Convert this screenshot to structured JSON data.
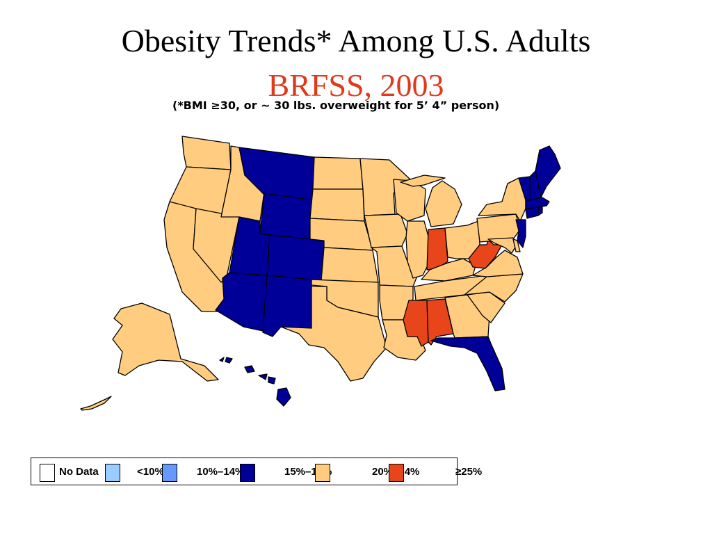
{
  "title": "Obesity Trends* Among U.S. Adults",
  "subtitle": "BRFSS, 2003",
  "note": "(*BMI ≥30, or ~ 30 lbs. overweight for 5’ 4” person)",
  "legend": [
    {
      "label": "No Data",
      "color": "#ffffff"
    },
    {
      "label": "<10%",
      "color": "#99ccff"
    },
    {
      "label": "10%–14%",
      "color": "#6699ff"
    },
    {
      "label": "15%–19%",
      "color": "#000099"
    },
    {
      "label": "20%–24%",
      "color": "#ffcc80"
    },
    {
      "label": "≥25%",
      "color": "#e8461a"
    }
  ],
  "states": {
    "WA": "20-24",
    "OR": "20-24",
    "CA": "20-24",
    "NV": "20-24",
    "ID": "20-24",
    "MT": "15-19",
    "WY": "15-19",
    "UT": "15-19",
    "CO": "15-19",
    "AZ": "15-19",
    "NM": "15-19",
    "ND": "20-24",
    "SD": "20-24",
    "NE": "20-24",
    "KS": "20-24",
    "OK": "20-24",
    "TX": "20-24",
    "MN": "20-24",
    "IA": "20-24",
    "MO": "20-24",
    "AR": "20-24",
    "LA": "20-24",
    "WI": "20-24",
    "IL": "20-24",
    "MI": "20-24",
    "IN": ">=25",
    "OH": "20-24",
    "KY": "20-24",
    "TN": "20-24",
    "MS": ">=25",
    "AL": ">=25",
    "GA": "20-24",
    "FL": "15-19",
    "SC": "20-24",
    "NC": "20-24",
    "VA": "20-24",
    "WV": ">=25",
    "MD": "20-24",
    "DE": "20-24",
    "PA": "20-24",
    "NY": "20-24",
    "NJ": "15-19",
    "CT": "15-19",
    "RI": "15-19",
    "MA": "15-19",
    "VT": "15-19",
    "NH": "15-19",
    "ME": "15-19",
    "AK": "20-24",
    "HI": "15-19"
  }
}
